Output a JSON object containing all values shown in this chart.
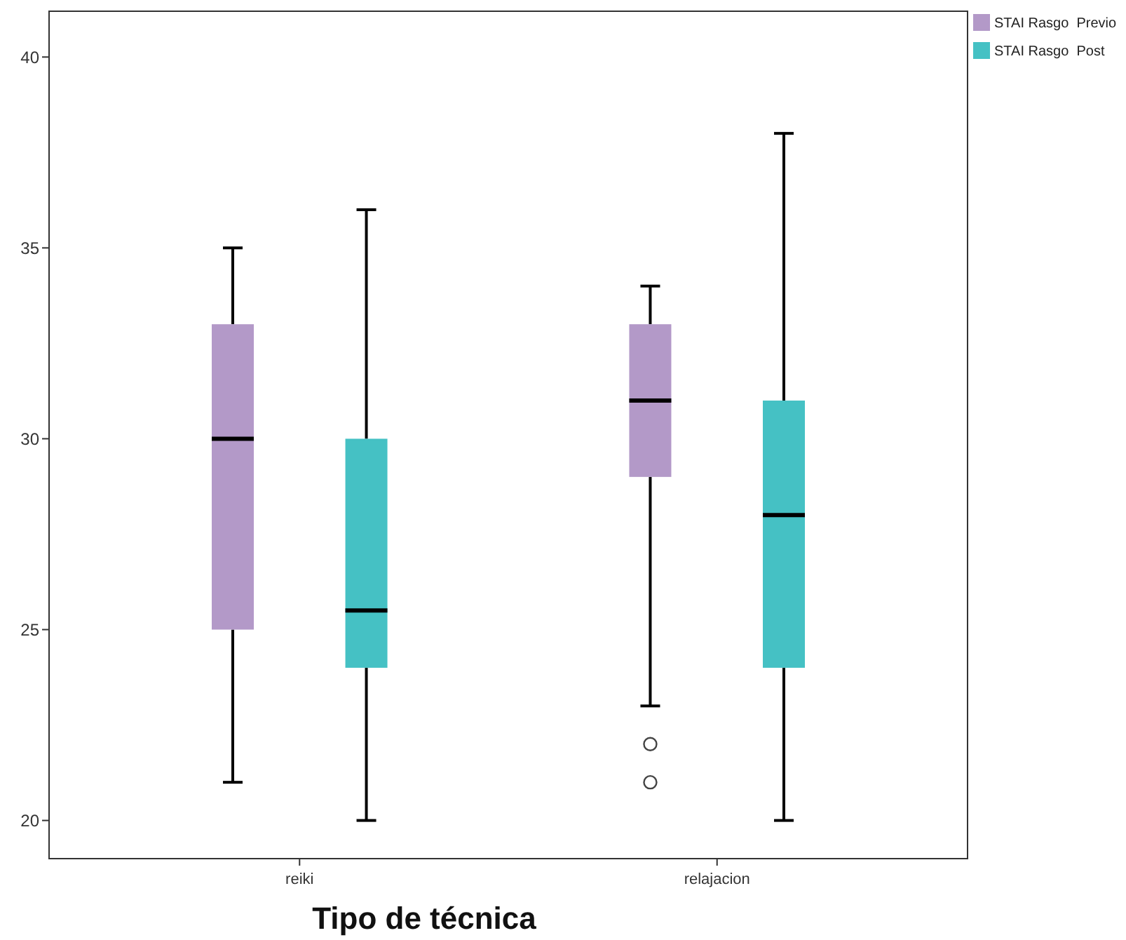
{
  "chart_data": {
    "type": "box",
    "xlabel": "Tipo de técnica",
    "categories": [
      "reiki",
      "relajacion"
    ],
    "ylim": [
      19,
      41.2
    ],
    "yticks": [
      20,
      25,
      30,
      35,
      40
    ],
    "legend": "top right",
    "grid": false,
    "series": [
      {
        "name": "STAI Rasgo  Previo",
        "color": "#b399c8",
        "boxes": [
          {
            "low": 21,
            "q1": 25,
            "median": 30,
            "q3": 33,
            "high": 35
          },
          {
            "low": 23,
            "q1": 29,
            "median": 31,
            "q3": 33,
            "high": 34,
            "outliers": [
              22,
              21
            ]
          }
        ]
      },
      {
        "name": "STAI Rasgo  Post",
        "color": "#45c1c4",
        "boxes": [
          {
            "low": 20,
            "q1": 24,
            "median": 25.5,
            "q3": 30,
            "high": 36
          },
          {
            "low": 20,
            "q1": 24,
            "median": 28,
            "q3": 31,
            "high": 38
          }
        ]
      }
    ]
  }
}
